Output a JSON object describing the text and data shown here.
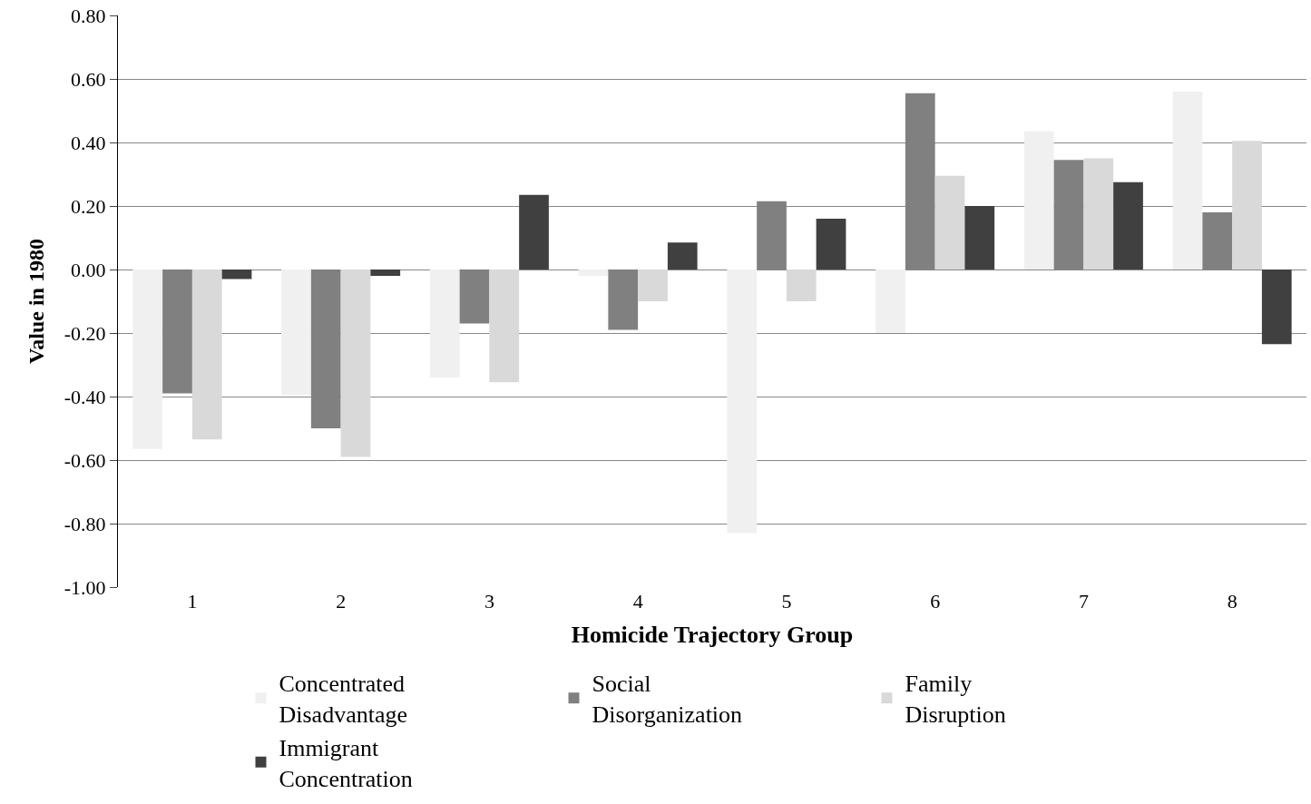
{
  "chart_data": {
    "type": "bar",
    "xlabel": "Homicide Trajectory Group",
    "ylabel": "Value in 1980",
    "categories": [
      "1",
      "2",
      "3",
      "4",
      "5",
      "6",
      "7",
      "8"
    ],
    "series": [
      {
        "name": "Concentrated Disadvantage",
        "color": "#f0f0f0",
        "values": [
          -0.565,
          -0.395,
          -0.34,
          -0.02,
          -0.83,
          -0.2,
          0.435,
          0.56
        ]
      },
      {
        "name": "Social Disorganization",
        "color": "#808080",
        "values": [
          -0.39,
          -0.5,
          -0.17,
          -0.19,
          0.215,
          0.555,
          0.345,
          0.18
        ]
      },
      {
        "name": "Family Disruption",
        "color": "#d9d9d9",
        "values": [
          -0.535,
          -0.59,
          -0.355,
          -0.1,
          -0.1,
          0.295,
          0.35,
          0.405
        ]
      },
      {
        "name": "Immigrant Concentration",
        "color": "#404040",
        "values": [
          -0.03,
          -0.02,
          0.235,
          0.085,
          0.16,
          0.2,
          0.275,
          -0.235
        ]
      }
    ],
    "ylim": [
      -1.0,
      0.8
    ],
    "yticks": [
      {
        "value": -1.0,
        "label": "-1.00"
      },
      {
        "value": -0.8,
        "label": "-0.80"
      },
      {
        "value": -0.6,
        "label": "-0.60"
      },
      {
        "value": -0.4,
        "label": "-0.40"
      },
      {
        "value": -0.2,
        "label": "-0.20"
      },
      {
        "value": 0.0,
        "label": "0.00"
      },
      {
        "value": 0.2,
        "label": "0.20"
      },
      {
        "value": 0.4,
        "label": "0.40"
      },
      {
        "value": 0.6,
        "label": "0.60"
      },
      {
        "value": 0.8,
        "label": "0.80"
      }
    ],
    "grid": "y",
    "legend": "bottom"
  }
}
